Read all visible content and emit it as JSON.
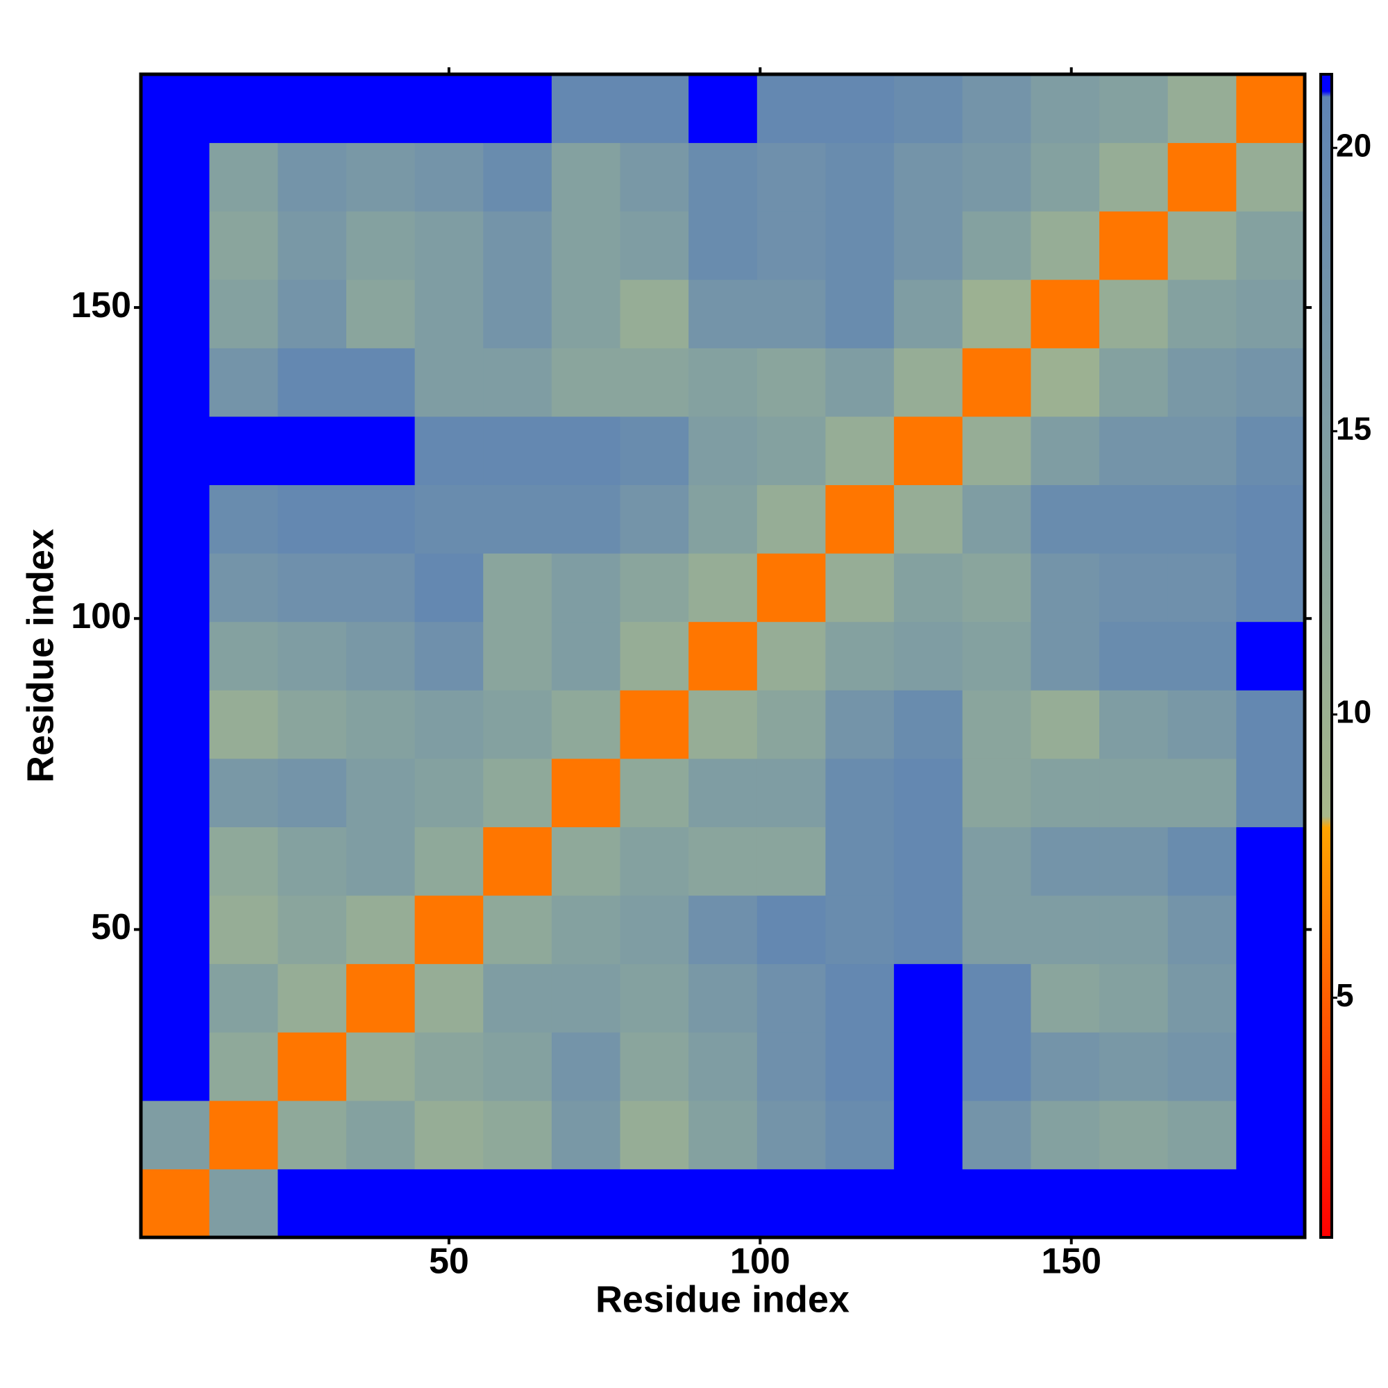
{
  "chart_data": {
    "type": "heatmap",
    "xlabel": "Residue index",
    "ylabel": "Residue index",
    "xbins": [
      0.5,
      11.5,
      22.5,
      33.5,
      44.5,
      55.5,
      66.5,
      77.5,
      88.5,
      99.5,
      110.5,
      121.5,
      132.5,
      143.5,
      154.5,
      165.5,
      176.5,
      187.5
    ],
    "ybins": [
      0.5,
      11.5,
      22.5,
      33.5,
      44.5,
      55.5,
      66.5,
      77.5,
      88.5,
      99.5,
      110.5,
      121.5,
      132.5,
      143.5,
      154.5,
      165.5,
      176.5,
      187.5
    ],
    "z": [
      [
        6,
        15,
        21,
        21,
        21,
        21,
        21,
        21,
        21,
        21,
        21,
        21,
        21,
        21,
        21,
        21,
        21
      ],
      [
        15,
        6,
        12,
        14,
        11,
        12,
        16,
        11,
        14,
        17,
        19,
        21,
        17,
        14,
        13,
        14,
        21
      ],
      [
        21,
        12,
        6,
        11,
        13,
        14,
        17,
        13,
        15,
        18,
        20,
        21,
        20,
        17,
        16,
        17,
        21
      ],
      [
        21,
        14,
        11,
        6,
        11,
        15,
        15,
        14,
        16,
        18,
        20,
        21,
        20,
        13,
        14,
        16,
        21
      ],
      [
        21,
        11,
        13,
        11,
        6,
        12,
        14,
        15,
        18,
        20,
        19,
        20,
        15,
        15,
        15,
        17,
        21
      ],
      [
        21,
        12,
        14,
        15,
        12,
        6,
        12,
        14,
        13,
        13,
        19,
        20,
        15,
        17,
        17,
        19,
        21
      ],
      [
        21,
        16,
        17,
        15,
        14,
        12,
        6,
        12,
        15,
        15,
        19,
        20,
        13,
        14,
        14,
        14,
        20
      ],
      [
        21,
        11,
        13,
        14,
        15,
        14,
        12,
        6,
        11,
        13,
        17,
        19,
        13,
        11,
        15,
        16,
        20
      ],
      [
        21,
        14,
        15,
        16,
        18,
        13,
        15,
        11,
        6,
        11,
        14,
        15,
        14,
        17,
        19,
        19,
        21
      ],
      [
        21,
        17,
        18,
        18,
        20,
        13,
        15,
        13,
        11,
        6,
        11,
        14,
        13,
        17,
        18,
        18,
        20
      ],
      [
        21,
        19,
        20,
        20,
        19,
        19,
        19,
        17,
        14,
        11,
        6,
        11,
        15,
        19,
        19,
        19,
        20
      ],
      [
        21,
        21,
        21,
        21,
        20,
        20,
        20,
        19,
        15,
        14,
        11,
        6,
        11,
        15,
        17,
        17,
        19
      ],
      [
        21,
        17,
        20,
        20,
        15,
        15,
        13,
        13,
        14,
        13,
        15,
        11,
        6,
        10,
        14,
        16,
        17
      ],
      [
        21,
        14,
        17,
        13,
        15,
        17,
        14,
        11,
        17,
        17,
        19,
        15,
        10,
        6,
        11,
        14,
        15
      ],
      [
        21,
        13,
        16,
        14,
        15,
        17,
        14,
        15,
        19,
        18,
        19,
        17,
        14,
        11,
        6,
        11,
        14
      ],
      [
        21,
        14,
        17,
        16,
        17,
        19,
        14,
        16,
        19,
        18,
        19,
        17,
        16,
        14,
        11,
        6,
        11
      ],
      [
        21,
        21,
        21,
        21,
        21,
        21,
        20,
        20,
        21,
        20,
        20,
        19,
        17,
        15,
        14,
        11,
        6
      ]
    ],
    "xlim": [
      0.5,
      187.5
    ],
    "ylim": [
      0.5,
      187.5
    ],
    "xticks": [
      50,
      100,
      150
    ],
    "yticks": [
      50,
      100,
      150
    ],
    "colorscale": [
      {
        "value": 0.77,
        "color": "#ff0000"
      },
      {
        "value": 3,
        "color": "#ff3000"
      },
      {
        "value": 8,
        "color": "#ffa500"
      },
      {
        "value": 8.2,
        "color": "#a8b88a"
      },
      {
        "value": 12,
        "color": "#8fa99a"
      },
      {
        "value": 20.9,
        "color": "#5f84b4"
      },
      {
        "value": 21,
        "color": "#0000ff"
      },
      {
        "value": 21.3,
        "color": "#0000ff"
      }
    ],
    "colorbar": {
      "lim": [
        0.77,
        21.3
      ],
      "ticks": [
        5,
        10,
        15,
        20
      ]
    }
  }
}
